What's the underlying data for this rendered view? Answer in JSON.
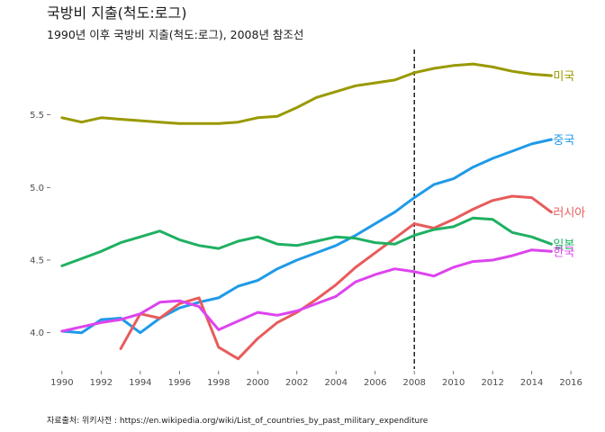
{
  "chart_data": {
    "type": "line",
    "title": "국방비 지출(척도:로그)",
    "subtitle": "1990년 이후 국방비 지출(척도:로그), 2008년 참조선",
    "caption": "자료출처: 위키사전 : https://en.wikipedia.org/wiki/List_of_countries_by_past_military_expenditure",
    "xlabel": "",
    "ylabel": "",
    "xlim": [
      1989.5,
      2016.5
    ],
    "ylim": [
      3.75,
      5.95
    ],
    "x_ticks": [
      "1990",
      "1992",
      "1994",
      "1996",
      "1998",
      "2000",
      "2002",
      "2004",
      "2006",
      "2008",
      "2010",
      "2012",
      "2014",
      "2016"
    ],
    "y_ticks": [
      "4.0",
      "4.5",
      "5.0",
      "5.5"
    ],
    "reference_line": {
      "x": 2008,
      "style": "dashed"
    },
    "grid": false,
    "legend": "direct labels at line ends",
    "series": [
      {
        "name": "미국",
        "color": "#999900",
        "x": [
          1990,
          1991,
          1992,
          1993,
          1994,
          1995,
          1996,
          1997,
          1998,
          1999,
          2000,
          2001,
          2002,
          2003,
          2004,
          2005,
          2006,
          2007,
          2008,
          2009,
          2010,
          2011,
          2012,
          2013,
          2014,
          2015
        ],
        "y": [
          5.48,
          5.45,
          5.48,
          5.47,
          5.46,
          5.45,
          5.44,
          5.44,
          5.44,
          5.45,
          5.48,
          5.49,
          5.55,
          5.62,
          5.66,
          5.7,
          5.72,
          5.74,
          5.79,
          5.82,
          5.84,
          5.85,
          5.83,
          5.8,
          5.78,
          5.77
        ]
      },
      {
        "name": "중국",
        "color": "#1f9ae8",
        "x": [
          1990,
          1991,
          1992,
          1993,
          1994,
          1995,
          1996,
          1997,
          1998,
          1999,
          2000,
          2001,
          2002,
          2003,
          2004,
          2005,
          2006,
          2007,
          2008,
          2009,
          2010,
          2011,
          2012,
          2013,
          2014,
          2015
        ],
        "y": [
          4.01,
          4.0,
          4.09,
          4.1,
          4.0,
          4.1,
          4.17,
          4.21,
          4.24,
          4.32,
          4.36,
          4.44,
          4.5,
          4.55,
          4.6,
          4.67,
          4.75,
          4.83,
          4.93,
          5.02,
          5.06,
          5.14,
          5.2,
          5.25,
          5.3,
          5.33
        ]
      },
      {
        "name": "러시아",
        "color": "#e85b5b",
        "x": [
          1993,
          1994,
          1995,
          1996,
          1997,
          1998,
          1999,
          2000,
          2001,
          2002,
          2003,
          2004,
          2005,
          2006,
          2007,
          2008,
          2009,
          2010,
          2011,
          2012,
          2013,
          2014,
          2015
        ],
        "y": [
          3.89,
          4.13,
          4.1,
          4.2,
          4.24,
          3.9,
          3.82,
          3.96,
          4.07,
          4.14,
          4.23,
          4.33,
          4.45,
          4.55,
          4.65,
          4.75,
          4.72,
          4.78,
          4.85,
          4.91,
          4.94,
          4.93,
          4.83
        ]
      },
      {
        "name": "일본",
        "color": "#1fb062",
        "x": [
          1990,
          1991,
          1992,
          1993,
          1994,
          1995,
          1996,
          1997,
          1998,
          1999,
          2000,
          2001,
          2002,
          2003,
          2004,
          2005,
          2006,
          2007,
          2008,
          2009,
          2010,
          2011,
          2012,
          2013,
          2014,
          2015
        ],
        "y": [
          4.46,
          4.51,
          4.56,
          4.62,
          4.66,
          4.7,
          4.64,
          4.6,
          4.58,
          4.63,
          4.66,
          4.61,
          4.6,
          4.63,
          4.66,
          4.65,
          4.62,
          4.61,
          4.67,
          4.71,
          4.73,
          4.79,
          4.78,
          4.69,
          4.66,
          4.61
        ]
      },
      {
        "name": "한국",
        "color": "#dd44ee",
        "x": [
          1990,
          1991,
          1992,
          1993,
          1994,
          1995,
          1996,
          1997,
          1998,
          1999,
          2000,
          2001,
          2002,
          2003,
          2004,
          2005,
          2006,
          2007,
          2008,
          2009,
          2010,
          2011,
          2012,
          2013,
          2014,
          2015
        ],
        "y": [
          4.01,
          4.04,
          4.07,
          4.09,
          4.13,
          4.21,
          4.22,
          4.18,
          4.02,
          4.08,
          4.14,
          4.12,
          4.15,
          4.2,
          4.25,
          4.35,
          4.4,
          4.44,
          4.42,
          4.39,
          4.45,
          4.49,
          4.5,
          4.53,
          4.57,
          4.56
        ]
      }
    ]
  }
}
